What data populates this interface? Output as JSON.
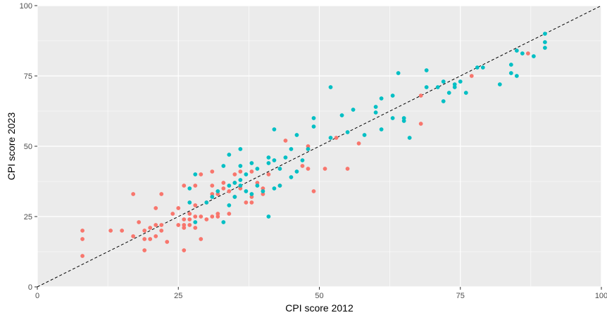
{
  "chart_data": {
    "type": "scatter",
    "xlabel": "CPI score 2012",
    "ylabel": "CPI score 2023",
    "xlim": [
      0,
      100
    ],
    "ylim": [
      0,
      100
    ],
    "x_ticks": [
      0,
      25,
      50,
      75,
      100
    ],
    "y_ticks": [
      0,
      25,
      50,
      75,
      100
    ],
    "grid": true,
    "reference_line": {
      "type": "y=x",
      "style": "dashed",
      "color": "#000000"
    },
    "colors": {
      "panel_bg": "#EBEBEB",
      "grid": "#FFFFFF",
      "point_red": "#F8766D",
      "point_teal": "#00BFC4",
      "tick_text": "#4D4D4D"
    },
    "series": [
      {
        "color": "#F8766D",
        "points": [
          [
            8,
            20
          ],
          [
            8,
            17
          ],
          [
            8,
            11
          ],
          [
            13,
            20
          ],
          [
            15,
            20
          ],
          [
            17,
            18
          ],
          [
            17,
            33
          ],
          [
            18,
            23
          ],
          [
            19,
            17
          ],
          [
            19,
            20
          ],
          [
            19,
            13
          ],
          [
            20,
            21
          ],
          [
            20,
            17
          ],
          [
            21,
            18
          ],
          [
            21,
            22
          ],
          [
            21,
            28
          ],
          [
            22,
            20
          ],
          [
            22,
            33
          ],
          [
            22,
            22
          ],
          [
            23,
            16
          ],
          [
            24,
            26
          ],
          [
            25,
            22
          ],
          [
            25,
            28
          ],
          [
            26,
            21
          ],
          [
            26,
            22
          ],
          [
            26,
            24
          ],
          [
            26,
            13
          ],
          [
            26,
            36
          ],
          [
            27,
            24
          ],
          [
            27,
            26
          ],
          [
            27,
            22
          ],
          [
            28,
            21
          ],
          [
            28,
            25
          ],
          [
            28,
            29
          ],
          [
            28,
            36
          ],
          [
            29,
            25
          ],
          [
            29,
            17
          ],
          [
            29,
            40
          ],
          [
            30,
            30
          ],
          [
            30,
            24
          ],
          [
            31,
            41
          ],
          [
            31,
            25
          ],
          [
            31,
            36
          ],
          [
            31,
            33
          ],
          [
            32,
            33
          ],
          [
            32,
            26
          ],
          [
            32,
            25
          ],
          [
            33,
            37
          ],
          [
            33,
            35
          ],
          [
            34,
            26
          ],
          [
            34,
            34
          ],
          [
            35,
            37
          ],
          [
            35,
            40
          ],
          [
            35,
            32
          ],
          [
            36,
            41
          ],
          [
            36,
            35
          ],
          [
            37,
            30
          ],
          [
            38,
            30
          ],
          [
            38,
            32
          ],
          [
            38,
            41
          ],
          [
            39,
            37
          ],
          [
            40,
            35
          ],
          [
            40,
            33
          ],
          [
            41,
            40
          ],
          [
            43,
            36
          ],
          [
            44,
            52
          ],
          [
            47,
            43
          ],
          [
            48,
            42
          ],
          [
            48,
            50
          ],
          [
            49,
            34
          ],
          [
            51,
            42
          ],
          [
            53,
            53
          ],
          [
            55,
            42
          ],
          [
            57,
            51
          ],
          [
            68,
            58
          ],
          [
            68,
            68
          ],
          [
            77,
            75
          ],
          [
            87,
            83
          ]
        ]
      },
      {
        "color": "#00BFC4",
        "points": [
          [
            27,
            35
          ],
          [
            27,
            30
          ],
          [
            28,
            40
          ],
          [
            28,
            23
          ],
          [
            30,
            30
          ],
          [
            31,
            32
          ],
          [
            32,
            34
          ],
          [
            33,
            43
          ],
          [
            33,
            23
          ],
          [
            34,
            47
          ],
          [
            34,
            36
          ],
          [
            34,
            29
          ],
          [
            35,
            32
          ],
          [
            35,
            37
          ],
          [
            36,
            49
          ],
          [
            36,
            43
          ],
          [
            36,
            38
          ],
          [
            36,
            36
          ],
          [
            37,
            40
          ],
          [
            37,
            34
          ],
          [
            38,
            44
          ],
          [
            38,
            33
          ],
          [
            39,
            42
          ],
          [
            39,
            36
          ],
          [
            40,
            34
          ],
          [
            41,
            46
          ],
          [
            41,
            44
          ],
          [
            41,
            25
          ],
          [
            42,
            56
          ],
          [
            42,
            45
          ],
          [
            42,
            35
          ],
          [
            43,
            42
          ],
          [
            43,
            36
          ],
          [
            44,
            46
          ],
          [
            45,
            49
          ],
          [
            45,
            39
          ],
          [
            46,
            54
          ],
          [
            46,
            41
          ],
          [
            47,
            45
          ],
          [
            48,
            49
          ],
          [
            49,
            60
          ],
          [
            49,
            57
          ],
          [
            52,
            71
          ],
          [
            52,
            53
          ],
          [
            54,
            61
          ],
          [
            55,
            55
          ],
          [
            56,
            63
          ],
          [
            58,
            54
          ],
          [
            60,
            64
          ],
          [
            60,
            62
          ],
          [
            61,
            67
          ],
          [
            61,
            56
          ],
          [
            63,
            68
          ],
          [
            63,
            60
          ],
          [
            64,
            76
          ],
          [
            65,
            60
          ],
          [
            65,
            59
          ],
          [
            66,
            53
          ],
          [
            69,
            77
          ],
          [
            69,
            71
          ],
          [
            71,
            71
          ],
          [
            72,
            73
          ],
          [
            72,
            66
          ],
          [
            73,
            69
          ],
          [
            74,
            72
          ],
          [
            74,
            71
          ],
          [
            75,
            73
          ],
          [
            76,
            69
          ],
          [
            78,
            78
          ],
          [
            79,
            78
          ],
          [
            82,
            72
          ],
          [
            84,
            79
          ],
          [
            84,
            76
          ],
          [
            85,
            84
          ],
          [
            85,
            75
          ],
          [
            86,
            83
          ],
          [
            88,
            82
          ],
          [
            90,
            90
          ],
          [
            90,
            87
          ],
          [
            90,
            85
          ]
        ]
      }
    ]
  }
}
